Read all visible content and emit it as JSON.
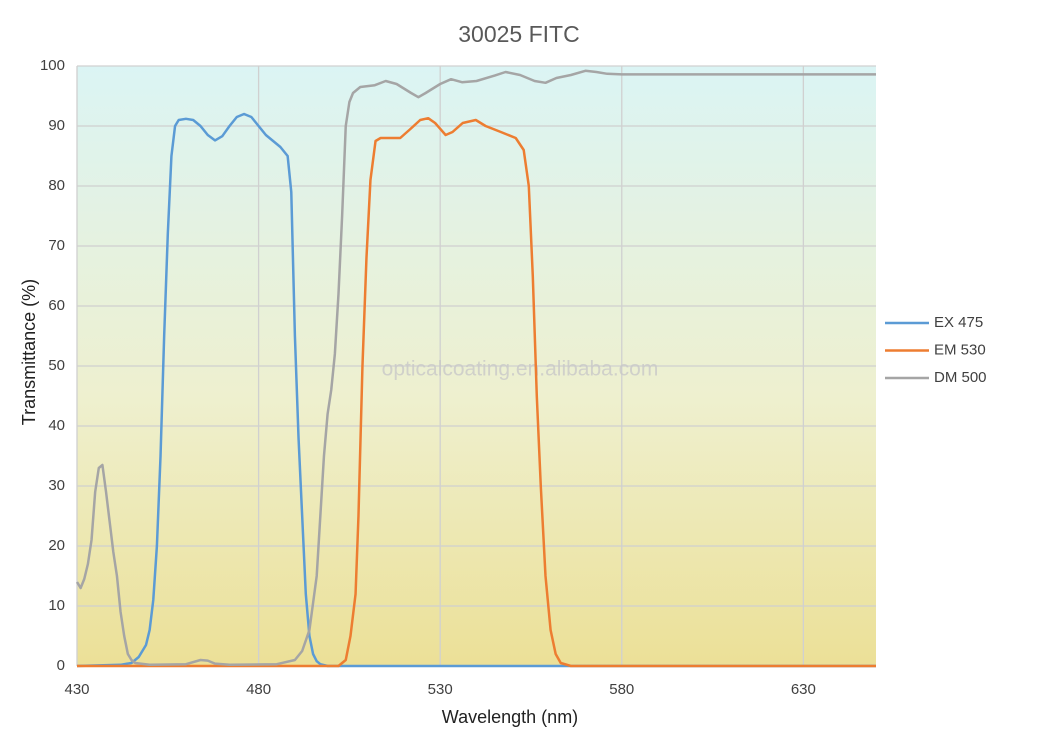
{
  "chart_data": {
    "type": "line",
    "title": "30025 FITC",
    "xlabel": "Wavelength (nm)",
    "ylabel": "Transmittance (%)",
    "annotation": "opticalcoating.en.alibaba.com",
    "xlim": [
      430,
      650
    ],
    "ylim": [
      0,
      100
    ],
    "xticks": [
      430,
      480,
      530,
      580,
      630
    ],
    "yticks": [
      0,
      10,
      20,
      30,
      40,
      50,
      60,
      70,
      80,
      90,
      100
    ],
    "grid": true,
    "legend": "right",
    "series": [
      {
        "name": "EX 475",
        "color": "#5b9bd5",
        "x": [
          430,
          442,
          445,
          447,
          449,
          450,
          451,
          452,
          453,
          454,
          455,
          456,
          457,
          458,
          460,
          462,
          464,
          466,
          468,
          470,
          472,
          474,
          476,
          478,
          480,
          482,
          484,
          486,
          488,
          489,
          490,
          491,
          492,
          493,
          494,
          495,
          496,
          497,
          499,
          650
        ],
        "values": [
          0,
          0.2,
          0.5,
          1.5,
          3.5,
          6,
          11,
          20,
          35,
          55,
          72,
          85,
          90,
          91,
          91.2,
          91,
          90,
          88.5,
          87.6,
          88.3,
          90,
          91.5,
          92,
          91.5,
          90,
          88.5,
          87.5,
          86.5,
          85,
          79,
          55,
          38,
          25,
          12,
          5,
          2,
          0.8,
          0.3,
          0,
          0
        ]
      },
      {
        "name": "EM 530",
        "color": "#ed7d31",
        "x": [
          430,
          502,
          504,
          505.3,
          506.7,
          507.5,
          508.6,
          509.7,
          510.8,
          512.2,
          513.6,
          519,
          521.8,
          524.5,
          526.7,
          528.6,
          531.5,
          533.4,
          536.2,
          539.8,
          542.5,
          546.7,
          550.8,
          553,
          554.4,
          555.5,
          556.6,
          557.7,
          559,
          560.4,
          561.8,
          563.2,
          566,
          650
        ],
        "values": [
          0,
          0,
          1,
          5,
          12,
          25,
          50,
          68,
          81,
          87.5,
          88,
          88,
          89.5,
          91,
          91.3,
          90.5,
          88.5,
          89,
          90.5,
          91,
          90,
          89,
          88,
          86,
          80,
          65,
          45,
          30,
          15,
          6,
          2,
          0.5,
          0,
          0
        ]
      },
      {
        "name": "DM 500",
        "color": "#a5a5a5",
        "x": [
          430,
          431,
          432,
          433,
          434,
          435,
          436,
          437,
          438,
          439,
          440,
          441,
          442,
          443,
          444,
          445,
          446,
          450,
          460,
          464,
          466,
          468,
          472,
          485,
          490,
          492,
          494,
          496,
          497,
          498,
          499,
          500,
          501,
          502,
          503,
          504,
          505,
          506,
          508,
          512,
          515,
          518,
          522,
          524,
          526,
          530,
          533,
          536,
          540,
          545,
          548,
          552,
          556,
          559,
          562,
          566,
          570,
          573,
          576,
          580,
          650
        ],
        "values": [
          14,
          13,
          14.5,
          17,
          21,
          29,
          33,
          33.5,
          29,
          24,
          19,
          15,
          9,
          5,
          2,
          1,
          0.5,
          0.2,
          0.3,
          1,
          0.9,
          0.4,
          0.2,
          0.3,
          1,
          2.5,
          6,
          15,
          25,
          35,
          42,
          46,
          52,
          62,
          75,
          90,
          94,
          95.5,
          96.5,
          96.8,
          97.5,
          97,
          95.5,
          94.8,
          95.5,
          97,
          97.8,
          97.3,
          97.5,
          98.4,
          99,
          98.5,
          97.5,
          97.2,
          98,
          98.5,
          99.2,
          99,
          98.7,
          98.6,
          98.6
        ]
      }
    ]
  }
}
